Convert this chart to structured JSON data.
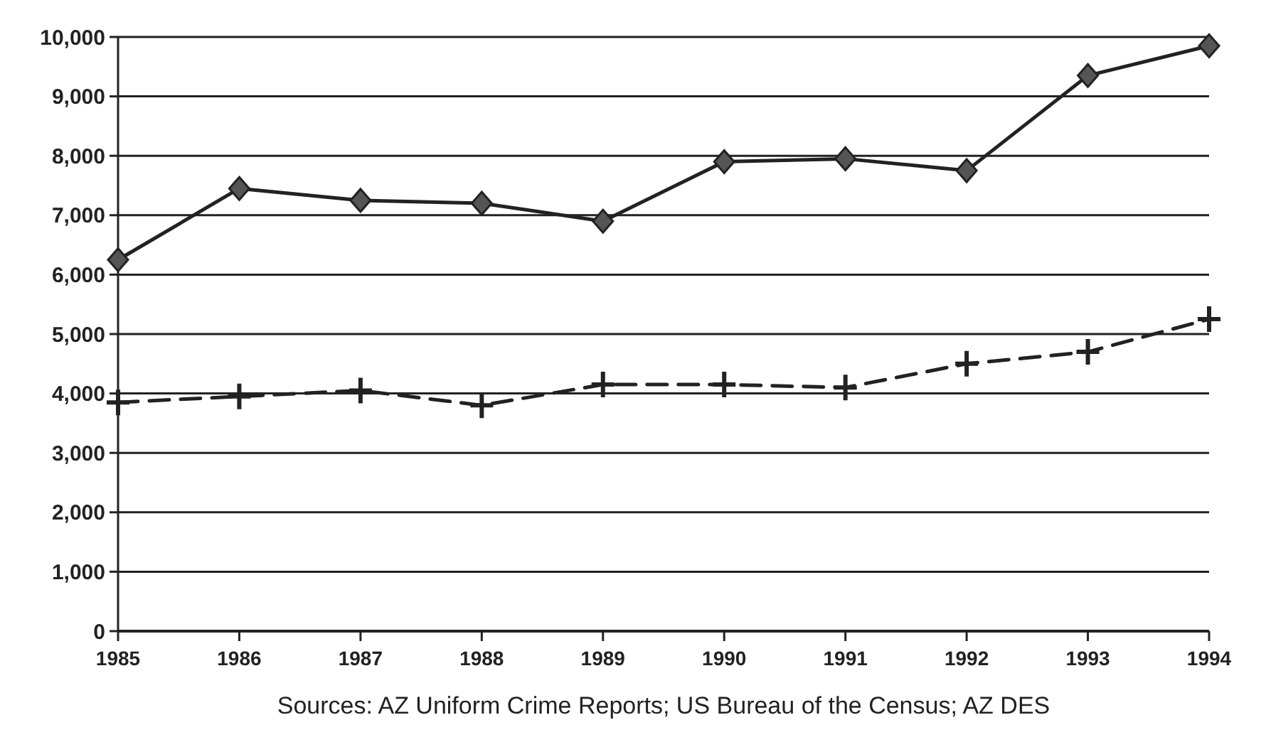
{
  "chart_data": {
    "type": "line",
    "categories": [
      "1985",
      "1986",
      "1987",
      "1988",
      "1989",
      "1990",
      "1991",
      "1992",
      "1993",
      "1994"
    ],
    "series": [
      {
        "color": "#222222",
        "marker": "diamond",
        "line_style": "solid",
        "values": [
          6250,
          7450,
          7250,
          7200,
          6900,
          7900,
          7950,
          7750,
          9350,
          9850
        ]
      },
      {
        "color": "#222222",
        "marker": "cross",
        "line_style": "dashed",
        "values": [
          3850,
          3950,
          4050,
          3800,
          4150,
          4150,
          4100,
          4500,
          4700,
          5250
        ]
      }
    ],
    "ylim": [
      0,
      10000
    ],
    "yticks": [
      {
        "value": 0,
        "label": "0"
      },
      {
        "value": 1000,
        "label": "1,000"
      },
      {
        "value": 2000,
        "label": "2,000"
      },
      {
        "value": 3000,
        "label": "3,000"
      },
      {
        "value": 4000,
        "label": "4,000"
      },
      {
        "value": 5000,
        "label": "5,000"
      },
      {
        "value": 6000,
        "label": "6,000"
      },
      {
        "value": 7000,
        "label": "7,000"
      },
      {
        "value": 8000,
        "label": "8,000"
      },
      {
        "value": 9000,
        "label": "9,000"
      },
      {
        "value": 10000,
        "label": "10,000"
      }
    ],
    "grid": "y",
    "annotations": [
      "Sources: AZ Uniform Crime Reports; US Bureau of the Census; AZ DES"
    ]
  }
}
